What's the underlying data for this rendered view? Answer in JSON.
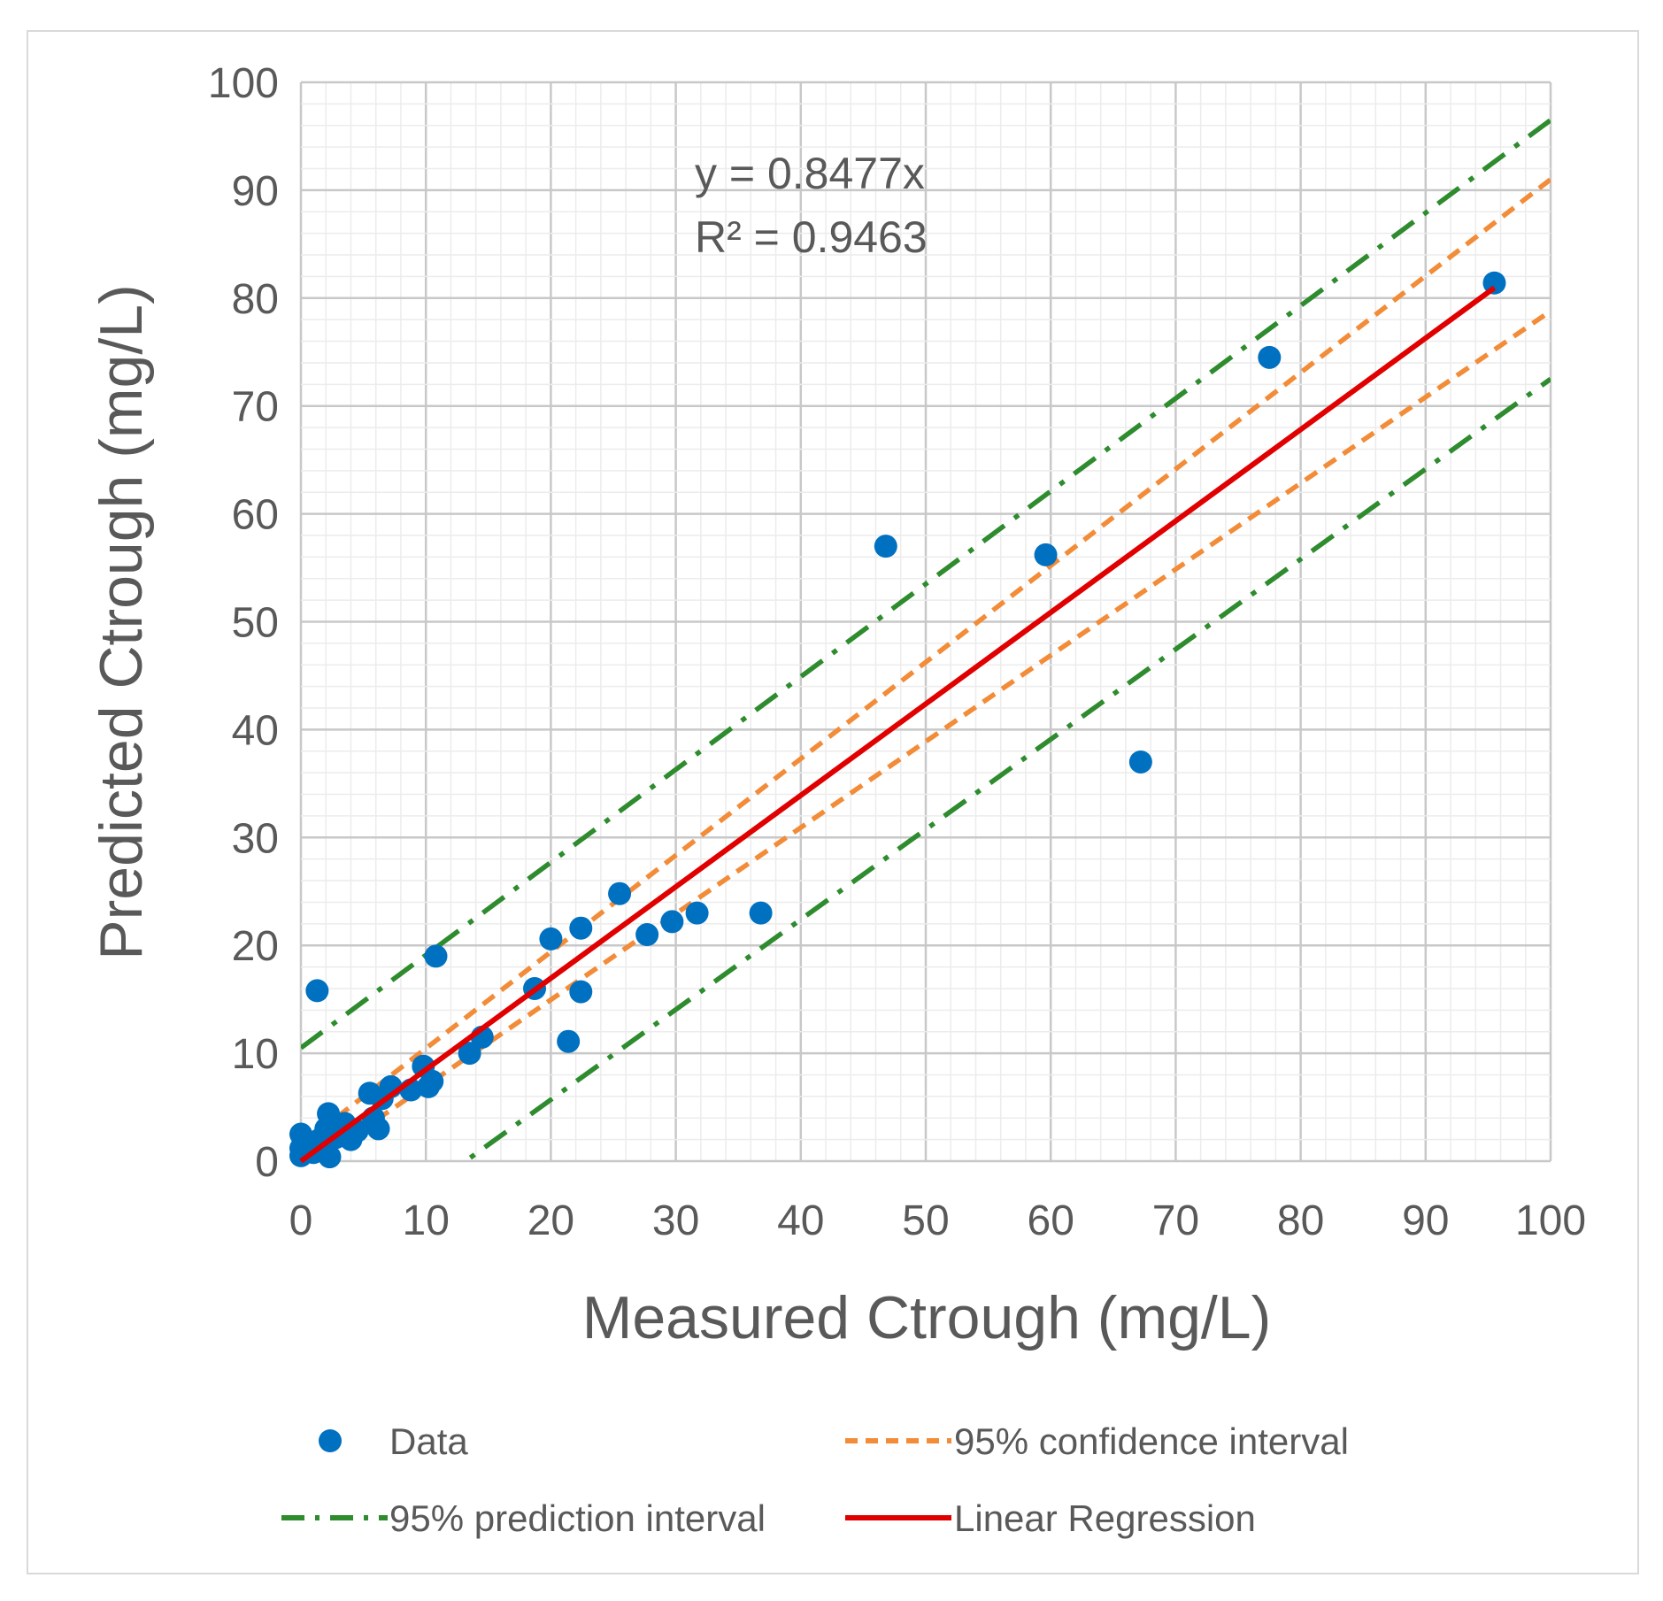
{
  "chart_data": {
    "type": "scatter",
    "xlabel": "Measured Ctrough (mg/L)",
    "ylabel": "Predicted Ctrough (mg/L)",
    "xlim": [
      0,
      100
    ],
    "ylim": [
      0,
      100
    ],
    "xticks": [
      "0",
      "10",
      "20",
      "30",
      "40",
      "50",
      "60",
      "70",
      "80",
      "90",
      "100"
    ],
    "yticks": [
      "0",
      "10",
      "20",
      "30",
      "40",
      "50",
      "60",
      "70",
      "80",
      "90",
      "100"
    ],
    "grid": true,
    "annotation": {
      "equation": "y = 0.8477x",
      "r2": "R² = 0.9463"
    },
    "legend": {
      "placement": "bottom",
      "entries": [
        {
          "label": "Data",
          "color": "#0070c0",
          "style": "marker"
        },
        {
          "label": "95% confidence interval",
          "color": "#f28c38",
          "style": "dashed"
        },
        {
          "label": "95% prediction interval",
          "color": "#2e8b2e",
          "style": "dash-dot"
        },
        {
          "label": "Linear Regression",
          "color": "#e00000",
          "style": "solid"
        }
      ]
    },
    "series": [
      {
        "name": "Data",
        "type": "scatter",
        "color": "#0070c0",
        "points": [
          [
            0,
            0.5
          ],
          [
            0,
            1.2
          ],
          [
            0,
            2.5
          ],
          [
            0.5,
            1.5
          ],
          [
            1,
            0.8
          ],
          [
            1.5,
            2.0
          ],
          [
            1.3,
            15.8
          ],
          [
            2,
            3.0
          ],
          [
            2.2,
            4.4
          ],
          [
            2.3,
            0.4
          ],
          [
            2.8,
            2.2
          ],
          [
            3.5,
            3.5
          ],
          [
            4,
            2.0
          ],
          [
            4.5,
            2.8
          ],
          [
            5.5,
            6.3
          ],
          [
            5.8,
            4.0
          ],
          [
            6.2,
            3.0
          ],
          [
            6.5,
            5.8
          ],
          [
            7.2,
            6.9
          ],
          [
            8.8,
            6.6
          ],
          [
            9.8,
            8.8
          ],
          [
            10.2,
            6.9
          ],
          [
            10.5,
            7.4
          ],
          [
            10.8,
            19.0
          ],
          [
            13.5,
            10.0
          ],
          [
            14.5,
            11.5
          ],
          [
            18.7,
            16.0
          ],
          [
            20,
            20.6
          ],
          [
            21.4,
            11.1
          ],
          [
            22.4,
            21.6
          ],
          [
            22.4,
            15.7
          ],
          [
            25.5,
            24.8
          ],
          [
            27.7,
            21.0
          ],
          [
            29.7,
            22.2
          ],
          [
            31.7,
            23.0
          ],
          [
            36.8,
            23.0
          ],
          [
            46.8,
            57.0
          ],
          [
            59.6,
            56.2
          ],
          [
            67.2,
            37.0
          ],
          [
            77.5,
            74.5
          ],
          [
            95.5,
            81.4
          ]
        ]
      },
      {
        "name": "Linear Regression",
        "type": "line",
        "color": "#e00000",
        "points": [
          [
            0,
            0
          ],
          [
            95.5,
            80.95
          ]
        ]
      },
      {
        "name": "95% confidence interval",
        "type": "line",
        "color": "#f28c38",
        "upper": [
          [
            0,
            1.5
          ],
          [
            100,
            91.0
          ]
        ],
        "lower": [
          [
            0,
            -1.0
          ],
          [
            100,
            78.8
          ]
        ]
      },
      {
        "name": "95% prediction interval",
        "type": "line",
        "color": "#2e8b2e",
        "upper": [
          [
            0,
            10.5
          ],
          [
            100,
            96.5
          ]
        ],
        "lower": [
          [
            0,
            -11.0
          ],
          [
            100,
            72.5
          ]
        ]
      }
    ]
  }
}
